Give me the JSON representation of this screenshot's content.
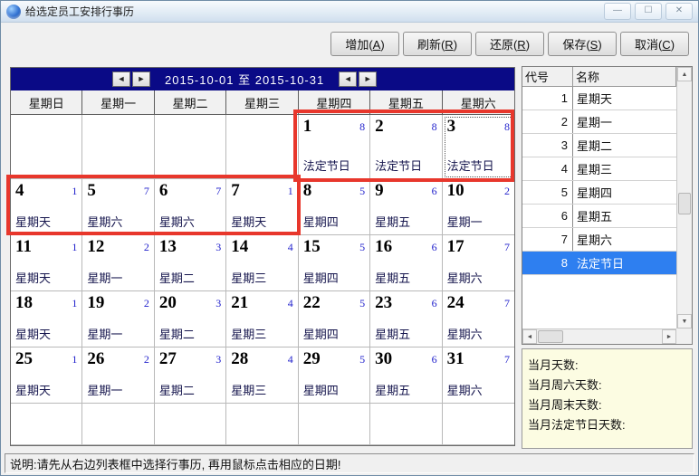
{
  "window": {
    "title": "给选定员工安排行事历",
    "controls": {
      "minimize": "—",
      "maximize": "☐",
      "close": "✕"
    }
  },
  "toolbar": {
    "buttons": [
      "增加(A)",
      "刷新(R)",
      "还原(R)",
      "保存(S)",
      "取消(C)"
    ]
  },
  "calendar": {
    "nav": {
      "prev": "◄",
      "next": "►",
      "range": "2015-10-01 至 2015-10-31"
    },
    "day_headers": [
      "星期日",
      "星期一",
      "星期二",
      "星期三",
      "星期四",
      "星期五",
      "星期六"
    ],
    "weeks": [
      [
        null,
        null,
        null,
        null,
        {
          "day": "1",
          "code": "8",
          "label": "法定节日"
        },
        {
          "day": "2",
          "code": "8",
          "label": "法定节日"
        },
        {
          "day": "3",
          "code": "8",
          "label": "法定节日",
          "focused": true
        }
      ],
      [
        {
          "day": "4",
          "code": "1",
          "label": "星期天"
        },
        {
          "day": "5",
          "code": "7",
          "label": "星期六"
        },
        {
          "day": "6",
          "code": "7",
          "label": "星期六"
        },
        {
          "day": "7",
          "code": "1",
          "label": "星期天"
        },
        {
          "day": "8",
          "code": "5",
          "label": "星期四"
        },
        {
          "day": "9",
          "code": "6",
          "label": "星期五"
        },
        {
          "day": "10",
          "code": "2",
          "label": "星期一"
        }
      ],
      [
        {
          "day": "11",
          "code": "1",
          "label": "星期天"
        },
        {
          "day": "12",
          "code": "2",
          "label": "星期一"
        },
        {
          "day": "13",
          "code": "3",
          "label": "星期二"
        },
        {
          "day": "14",
          "code": "4",
          "label": "星期三"
        },
        {
          "day": "15",
          "code": "5",
          "label": "星期四"
        },
        {
          "day": "16",
          "code": "6",
          "label": "星期五"
        },
        {
          "day": "17",
          "code": "7",
          "label": "星期六"
        }
      ],
      [
        {
          "day": "18",
          "code": "1",
          "label": "星期天"
        },
        {
          "day": "19",
          "code": "2",
          "label": "星期一"
        },
        {
          "day": "20",
          "code": "3",
          "label": "星期二"
        },
        {
          "day": "21",
          "code": "4",
          "label": "星期三"
        },
        {
          "day": "22",
          "code": "5",
          "label": "星期四"
        },
        {
          "day": "23",
          "code": "6",
          "label": "星期五"
        },
        {
          "day": "24",
          "code": "7",
          "label": "星期六"
        }
      ],
      [
        {
          "day": "25",
          "code": "1",
          "label": "星期天"
        },
        {
          "day": "26",
          "code": "2",
          "label": "星期一"
        },
        {
          "day": "27",
          "code": "3",
          "label": "星期二"
        },
        {
          "day": "28",
          "code": "4",
          "label": "星期三"
        },
        {
          "day": "29",
          "code": "5",
          "label": "星期四"
        },
        {
          "day": "30",
          "code": "6",
          "label": "星期五"
        },
        {
          "day": "31",
          "code": "7",
          "label": "星期六"
        }
      ],
      [
        null,
        null,
        null,
        null,
        null,
        null,
        null
      ]
    ]
  },
  "schedule_list": {
    "headers": [
      "代号",
      "名称"
    ],
    "rows": [
      {
        "code": "1",
        "name": "星期天"
      },
      {
        "code": "2",
        "name": "星期一"
      },
      {
        "code": "3",
        "name": "星期二"
      },
      {
        "code": "4",
        "name": "星期三"
      },
      {
        "code": "5",
        "name": "星期四"
      },
      {
        "code": "6",
        "name": "星期五"
      },
      {
        "code": "7",
        "name": "星期六"
      },
      {
        "code": "8",
        "name": "法定节日",
        "selected": true
      }
    ]
  },
  "summary": {
    "lines": [
      "当月天数:",
      "当月周六天数:",
      "当月周末天数:",
      "当月法定节日天数:"
    ]
  },
  "status_bar": {
    "text": "说明:请先从右边列表框中选择行事历, 再用鼠标点击相应的日期!"
  },
  "icons": {
    "up": "▲",
    "down": "▼",
    "left": "◄",
    "right": "►"
  },
  "colors": {
    "header_bar": "#0a0a86",
    "highlight": "#e8372c",
    "selection": "#2e7ff0",
    "code_number": "#2222cc",
    "summary_bg": "#fcfce2"
  }
}
